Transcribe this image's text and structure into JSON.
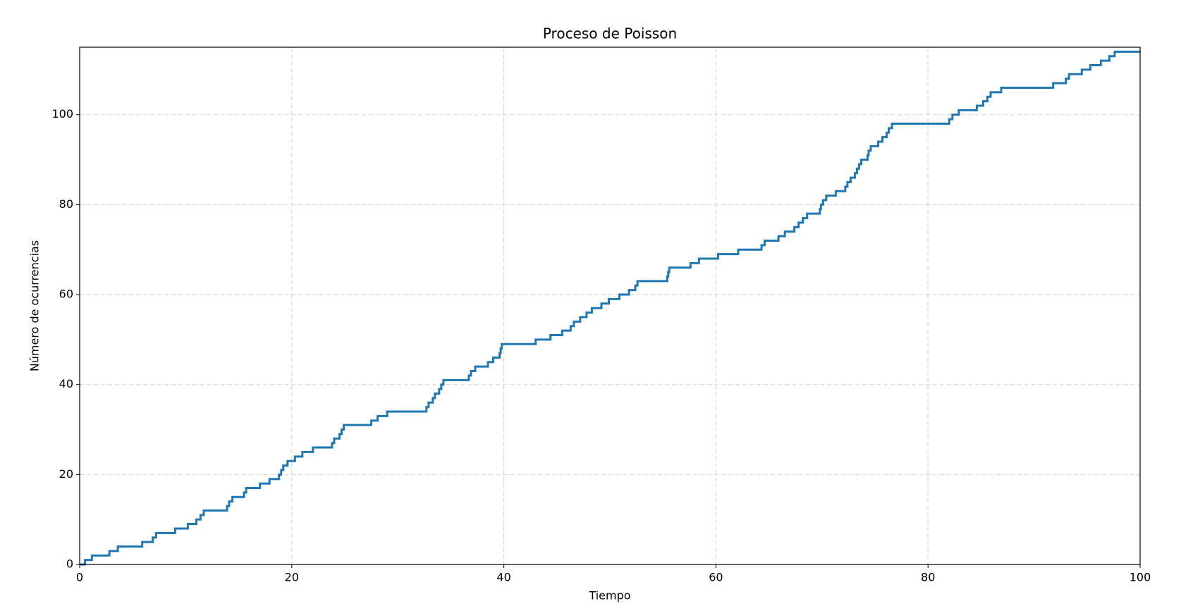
{
  "chart_data": {
    "type": "step",
    "title": "Proceso de Poisson",
    "x_label": "Tiempo",
    "y_label": "Número de ocurrencias",
    "x": [
      0,
      0.5,
      1.15,
      2.8,
      3.6,
      5.9,
      6.9,
      7.2,
      9.0,
      10.2,
      11.0,
      11.4,
      11.7,
      13.9,
      14.1,
      14.4,
      15.5,
      15.7,
      17.0,
      17.9,
      18.8,
      19.0,
      19.2,
      19.6,
      20.3,
      21.0,
      22.0,
      23.8,
      24.0,
      24.5,
      24.7,
      24.9,
      27.5,
      28.1,
      29.0,
      32.7,
      32.9,
      33.3,
      33.5,
      33.9,
      34.1,
      34.3,
      36.7,
      36.9,
      37.3,
      38.5,
      39.0,
      39.6,
      39.7,
      39.8,
      43.0,
      44.4,
      45.5,
      46.3,
      46.6,
      47.2,
      47.8,
      48.3,
      49.2,
      49.9,
      50.9,
      51.8,
      52.4,
      52.6,
      55.4,
      55.5,
      55.6,
      57.6,
      58.4,
      60.2,
      62.1,
      64.3,
      64.6,
      65.9,
      66.5,
      67.4,
      67.8,
      68.2,
      68.6,
      69.8,
      69.9,
      70.1,
      70.4,
      71.3,
      72.2,
      72.4,
      72.7,
      73.1,
      73.3,
      73.5,
      73.7,
      74.3,
      74.4,
      74.6,
      75.3,
      75.7,
      76.1,
      76.3,
      76.6,
      82.0,
      82.3,
      82.9,
      84.6,
      85.2,
      85.6,
      85.9,
      86.9,
      91.8,
      93.0,
      93.3,
      94.5,
      95.3,
      96.3,
      97.1,
      97.6,
      100
    ],
    "values": [
      0,
      1,
      2,
      3,
      4,
      5,
      6,
      7,
      8,
      9,
      10,
      11,
      12,
      13,
      14,
      15,
      16,
      17,
      18,
      19,
      20,
      21,
      22,
      23,
      24,
      25,
      26,
      27,
      28,
      29,
      30,
      31,
      32,
      33,
      34,
      35,
      36,
      37,
      38,
      39,
      40,
      41,
      42,
      43,
      44,
      45,
      46,
      47,
      48,
      49,
      50,
      51,
      52,
      53,
      54,
      55,
      56,
      57,
      58,
      59,
      60,
      61,
      62,
      63,
      64,
      65,
      66,
      67,
      68,
      69,
      70,
      71,
      72,
      73,
      74,
      75,
      76,
      77,
      78,
      79,
      80,
      81,
      82,
      83,
      84,
      85,
      86,
      87,
      88,
      89,
      90,
      91,
      92,
      93,
      94,
      95,
      96,
      97,
      98,
      99,
      100,
      101,
      102,
      103,
      104,
      105,
      106,
      107,
      108,
      109,
      110,
      111,
      112,
      113,
      114,
      114
    ],
    "color": "#1f77b4",
    "xlim": [
      0,
      100
    ],
    "ylim": [
      0,
      115
    ],
    "xticks": [
      0,
      20,
      40,
      60,
      80,
      100
    ],
    "yticks": [
      0,
      20,
      40,
      60,
      80,
      100
    ],
    "grid": true
  }
}
